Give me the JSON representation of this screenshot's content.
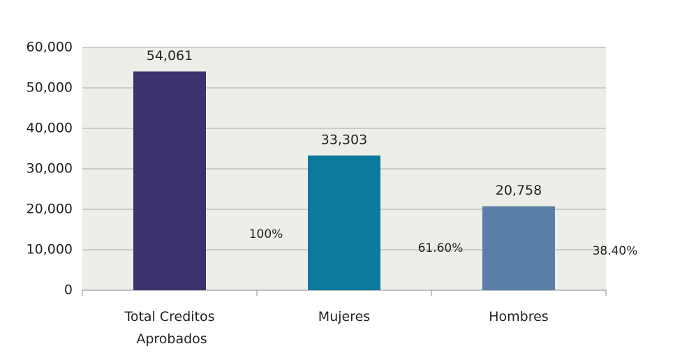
{
  "chart_data": {
    "type": "bar",
    "categories": [
      "Total Creditos Aprobados",
      "Mujeres",
      "Hombres"
    ],
    "values": [
      54061,
      33303,
      20758
    ],
    "value_labels": [
      "54,061",
      "33,303",
      "20,758"
    ],
    "annotations": [
      "100%",
      "61.60%",
      "38.40%"
    ],
    "colors": [
      "#3b336f",
      "#0b7a9c",
      "#5a7fa7"
    ],
    "ylim": [
      0,
      60000
    ],
    "yticks": [
      {
        "value": 0,
        "label": "0"
      },
      {
        "value": 10000,
        "label": "10,000"
      },
      {
        "value": 20000,
        "label": "20,000"
      },
      {
        "value": 30000,
        "label": "30,000"
      },
      {
        "value": 40000,
        "label": "40,000"
      },
      {
        "value": 50000,
        "label": "50,000"
      },
      {
        "value": 60000,
        "label": "60,000"
      }
    ],
    "grid": true
  }
}
